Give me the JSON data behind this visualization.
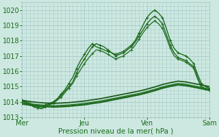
{
  "bg_color": "#cce8e0",
  "grid_color": "#aacccc",
  "line_color_dark": "#1a6b1a",
  "xlabel": "Pression niveau de la mer( hPa )",
  "ylim": [
    1013.0,
    1020.5
  ],
  "xlim": [
    0,
    96
  ],
  "yticks": [
    1013,
    1014,
    1015,
    1016,
    1017,
    1018,
    1019,
    1020
  ],
  "xtick_labels": [
    "Mer",
    "Jeu",
    "Ven",
    "Sam"
  ],
  "xtick_positions": [
    0,
    32,
    64,
    96
  ],
  "series": [
    {
      "x": [
        0,
        2,
        4,
        6,
        8,
        10,
        12,
        14,
        16,
        18,
        20,
        22,
        24,
        26,
        28,
        30,
        32,
        34,
        36,
        38,
        40,
        42,
        44,
        46,
        48,
        50,
        52,
        54,
        56,
        58,
        60,
        62,
        64,
        66,
        68,
        70,
        72,
        74,
        76,
        78,
        80,
        82,
        84,
        86,
        88,
        90,
        92,
        94,
        96
      ],
      "y": [
        1014.1,
        1014.0,
        1013.9,
        1013.8,
        1013.75,
        1013.7,
        1013.8,
        1013.9,
        1014.0,
        1014.2,
        1014.5,
        1014.8,
        1015.2,
        1015.6,
        1016.2,
        1016.7,
        1017.1,
        1017.5,
        1017.8,
        1017.6,
        1017.5,
        1017.4,
        1017.3,
        1017.2,
        1017.1,
        1017.2,
        1017.3,
        1017.5,
        1017.7,
        1018.0,
        1018.5,
        1019.0,
        1019.5,
        1019.8,
        1020.0,
        1019.8,
        1019.5,
        1018.8,
        1018.0,
        1017.5,
        1017.2,
        1017.1,
        1017.0,
        1016.8,
        1016.5,
        1015.8,
        1015.2,
        1015.0,
        1014.9
      ],
      "marker": "+",
      "markersize": 3.5,
      "lw": 1.0,
      "color": "#1a6b1a"
    },
    {
      "x": [
        0,
        2,
        4,
        6,
        8,
        10,
        12,
        14,
        16,
        18,
        20,
        22,
        24,
        26,
        28,
        30,
        32,
        34,
        36,
        38,
        40,
        42,
        44,
        46,
        48,
        50,
        52,
        54,
        56,
        58,
        60,
        62,
        64,
        66,
        68,
        70,
        72,
        74,
        76,
        78,
        80,
        82,
        84,
        86,
        88,
        90,
        92,
        94,
        96
      ],
      "y": [
        1014.05,
        1013.95,
        1013.85,
        1013.7,
        1013.65,
        1013.6,
        1013.7,
        1013.85,
        1013.95,
        1014.15,
        1014.4,
        1014.7,
        1015.0,
        1015.3,
        1015.9,
        1016.4,
        1016.8,
        1017.2,
        1017.6,
        1017.8,
        1017.7,
        1017.6,
        1017.4,
        1017.2,
        1017.0,
        1017.1,
        1017.2,
        1017.4,
        1017.6,
        1017.9,
        1018.3,
        1018.7,
        1019.1,
        1019.4,
        1019.6,
        1019.4,
        1019.1,
        1018.4,
        1017.7,
        1017.2,
        1016.9,
        1016.8,
        1016.7,
        1016.5,
        1016.3,
        1015.6,
        1015.0,
        1014.85,
        1014.8
      ],
      "marker": "+",
      "markersize": 3.5,
      "lw": 1.0,
      "color": "#226622"
    },
    {
      "x": [
        0,
        2,
        4,
        6,
        8,
        10,
        12,
        14,
        16,
        18,
        20,
        22,
        24,
        26,
        28,
        30,
        32,
        34,
        36,
        38,
        40,
        42,
        44,
        46,
        48,
        50,
        52,
        54,
        56,
        58,
        60,
        62,
        64,
        66,
        68,
        70,
        72,
        74,
        76,
        78,
        80,
        82,
        84,
        86,
        88,
        90,
        92,
        94,
        96
      ],
      "y": [
        1014.05,
        1013.95,
        1013.85,
        1013.65,
        1013.6,
        1013.55,
        1013.65,
        1013.8,
        1013.9,
        1014.1,
        1014.3,
        1014.6,
        1014.9,
        1015.2,
        1015.7,
        1016.1,
        1016.5,
        1016.85,
        1017.15,
        1017.4,
        1017.35,
        1017.25,
        1017.1,
        1016.95,
        1016.8,
        1016.9,
        1017.0,
        1017.2,
        1017.4,
        1017.7,
        1018.1,
        1018.5,
        1018.85,
        1019.1,
        1019.3,
        1019.1,
        1018.8,
        1018.2,
        1017.5,
        1017.0,
        1016.8,
        1016.7,
        1016.6,
        1016.4,
        1016.2,
        1015.5,
        1014.95,
        1014.8,
        1014.75
      ],
      "marker": "+",
      "markersize": 3.5,
      "lw": 1.0,
      "color": "#2a772a"
    },
    {
      "x": [
        0,
        4,
        8,
        12,
        16,
        20,
        24,
        28,
        32,
        36,
        40,
        44,
        48,
        52,
        56,
        60,
        64,
        68,
        72,
        76,
        80,
        84,
        88,
        92,
        96
      ],
      "y": [
        1013.85,
        1013.78,
        1013.72,
        1013.68,
        1013.65,
        1013.67,
        1013.7,
        1013.75,
        1013.8,
        1013.88,
        1013.95,
        1014.05,
        1014.15,
        1014.25,
        1014.35,
        1014.45,
        1014.58,
        1014.72,
        1014.88,
        1015.0,
        1015.1,
        1015.05,
        1014.95,
        1014.85,
        1014.75
      ],
      "marker": null,
      "lw": 1.2,
      "color": "#1a6b1a"
    },
    {
      "x": [
        0,
        4,
        8,
        12,
        16,
        20,
        24,
        28,
        32,
        36,
        40,
        44,
        48,
        52,
        56,
        60,
        64,
        68,
        72,
        76,
        80,
        84,
        88,
        92,
        96
      ],
      "y": [
        1013.9,
        1013.83,
        1013.77,
        1013.73,
        1013.7,
        1013.72,
        1013.75,
        1013.8,
        1013.85,
        1013.93,
        1014.0,
        1014.1,
        1014.2,
        1014.3,
        1014.4,
        1014.5,
        1014.63,
        1014.77,
        1014.93,
        1015.05,
        1015.15,
        1015.1,
        1015.0,
        1014.9,
        1014.8
      ],
      "marker": null,
      "lw": 1.0,
      "color": "#226622"
    },
    {
      "x": [
        0,
        4,
        8,
        12,
        16,
        20,
        24,
        28,
        32,
        36,
        40,
        44,
        48,
        52,
        56,
        60,
        64,
        68,
        72,
        76,
        80,
        84,
        88,
        92,
        96
      ],
      "y": [
        1013.95,
        1013.88,
        1013.82,
        1013.78,
        1013.75,
        1013.77,
        1013.8,
        1013.85,
        1013.9,
        1013.98,
        1014.05,
        1014.15,
        1014.25,
        1014.35,
        1014.45,
        1014.55,
        1014.68,
        1014.82,
        1014.98,
        1015.1,
        1015.2,
        1015.15,
        1015.05,
        1014.95,
        1014.85
      ],
      "marker": null,
      "lw": 1.0,
      "color": "#2a772a"
    },
    {
      "x": [
        0,
        4,
        8,
        12,
        16,
        20,
        24,
        28,
        32,
        36,
        40,
        44,
        48,
        52,
        56,
        60,
        64,
        68,
        72,
        76,
        80,
        84,
        88,
        92,
        96
      ],
      "y": [
        1014.1,
        1014.02,
        1013.96,
        1013.92,
        1013.9,
        1013.92,
        1013.95,
        1014.0,
        1014.05,
        1014.13,
        1014.2,
        1014.3,
        1014.4,
        1014.5,
        1014.6,
        1014.7,
        1014.83,
        1014.97,
        1015.13,
        1015.25,
        1015.35,
        1015.3,
        1015.2,
        1015.1,
        1015.0
      ],
      "marker": null,
      "lw": 1.3,
      "color": "#1a5c1a"
    }
  ]
}
